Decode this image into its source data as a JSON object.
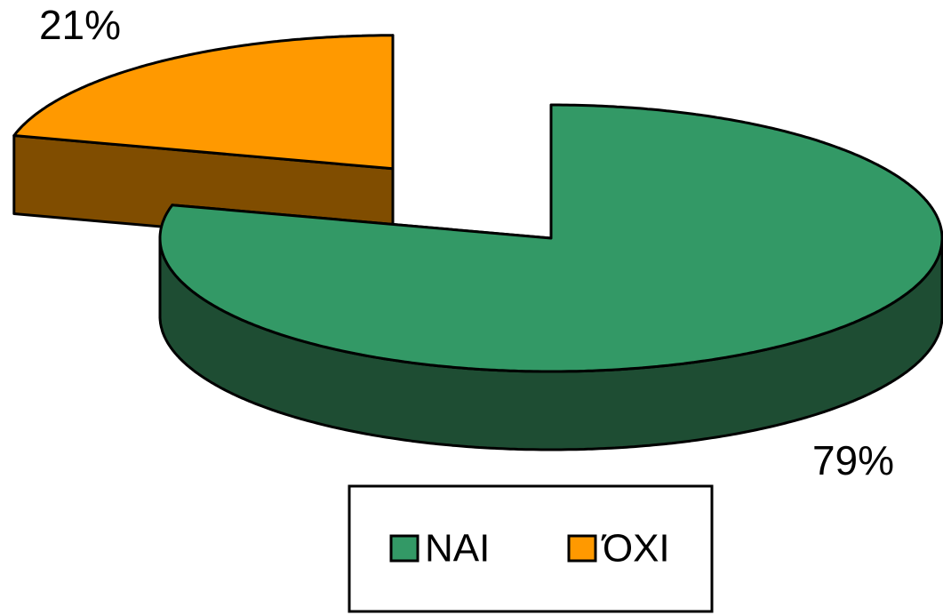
{
  "chart_data": {
    "type": "pie3d",
    "categories": [
      "ΝΑΙ",
      "ΌΧΙ"
    ],
    "values": [
      79,
      21
    ],
    "value_labels": [
      "79%",
      "21%"
    ],
    "colors": [
      "#339966",
      "#ff9900"
    ],
    "side_colors": [
      "#1e4d33",
      "#804d00"
    ],
    "legend": "bottom"
  }
}
